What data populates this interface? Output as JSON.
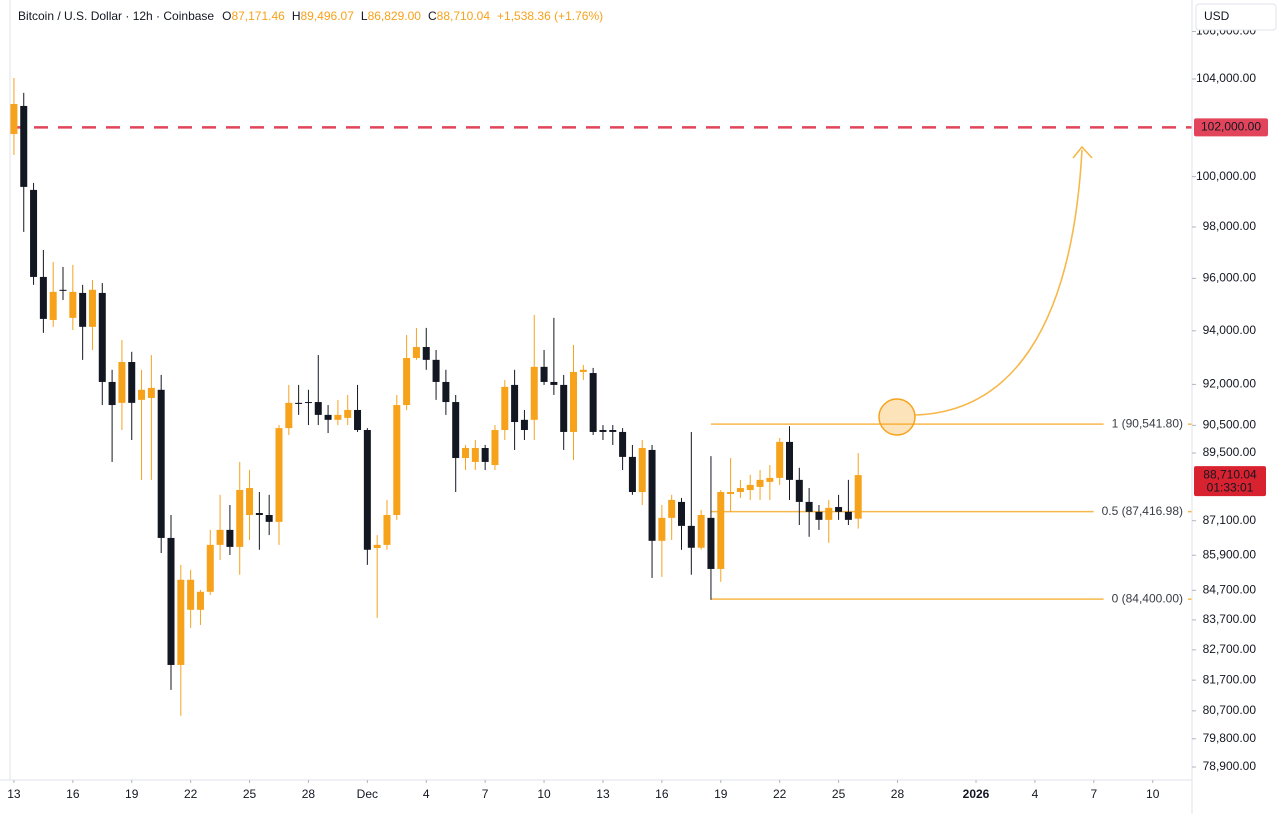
{
  "header": {
    "symbol": "Bitcoin / U.S. Dollar · 12h · Coinbase",
    "fields": [
      {
        "key": "O",
        "value": "87,171.46"
      },
      {
        "key": "H",
        "value": "89,496.07"
      },
      {
        "key": "L",
        "value": "86,829.00"
      },
      {
        "key": "C",
        "value": "88,710.04"
      }
    ],
    "change": "+1,538.36 (+1.76%)"
  },
  "chart_data": {
    "type": "candlestick",
    "currency": "USD",
    "log_scale": true,
    "up_color": "#f7a21b",
    "down_color": "#131722",
    "open": [
      101730,
      102880,
      99470,
      96055,
      94410,
      95560,
      94490,
      95440,
      94150,
      95440,
      92090,
      91320,
      92830,
      91430,
      91500,
      91800,
      86500,
      82200,
      84040,
      84040,
      84650,
      86260,
      86780,
      86190,
      87300,
      87370,
      87300,
      87060,
      90400,
      91320,
      91350,
      91350,
      90880,
      90700,
      90770,
      91060,
      90330,
      86150,
      86260,
      87300,
      91240,
      92980,
      93390,
      92910,
      92090,
      91350,
      89320,
      89180,
      89680,
      89070,
      90330,
      91980,
      90700,
      90700,
      92650,
      92090,
      91980,
      90260,
      92460,
      92420,
      90330,
      90330,
      90260,
      89360,
      88110,
      89610,
      86400,
      87200,
      87760,
      86920,
      86160,
      87200,
      85430,
      88040,
      88110,
      88180,
      88290,
      88470,
      88610,
      89900,
      88540,
      87760,
      87410,
      87130,
      87580,
      87410,
      87171.46
    ],
    "high": [
      104040,
      103420,
      99750,
      97100,
      96635,
      96440,
      96520,
      95750,
      95940,
      95820,
      92540,
      93656,
      93210,
      92540,
      93090,
      92350,
      87300,
      85570,
      85400,
      84710,
      86780,
      88010,
      87650,
      89180,
      88890,
      88110,
      88010,
      90510,
      91980,
      91980,
      91800,
      93090,
      91240,
      91430,
      91610,
      91980,
      90400,
      86600,
      87830,
      91610,
      93840,
      94110,
      94110,
      93280,
      92540,
      91610,
      89790,
      89970,
      89790,
      90510,
      92160,
      92540,
      91060,
      94600,
      93280,
      94490,
      92350,
      93470,
      92720,
      92610,
      90510,
      90510,
      90400,
      89790,
      89970,
      89790,
      87650,
      88010,
      87900,
      90260,
      87480,
      89390,
      88180,
      89320,
      88540,
      88720,
      88890,
      89070,
      90040,
      90470,
      88970,
      88250,
      87650,
      87830,
      88010,
      88540,
      89496.07
    ],
    "low": [
      100875,
      97810,
      95750,
      93920,
      94150,
      95170,
      94030,
      92910,
      93280,
      91240,
      89180,
      90333,
      89970,
      88540,
      88540,
      85980,
      81380,
      80540,
      83430,
      83530,
      84540,
      85740,
      85910,
      85230,
      86430,
      86090,
      86600,
      86260,
      90150,
      90880,
      90510,
      90510,
      90220,
      90510,
      90510,
      90260,
      85570,
      83770,
      86090,
      87130,
      91060,
      92910,
      92540,
      91430,
      90880,
      88110,
      88890,
      88890,
      88890,
      88890,
      89970,
      89610,
      89970,
      89970,
      91980,
      91610,
      89610,
      89250,
      92160,
      90150,
      89970,
      89790,
      88890,
      88010,
      87650,
      85120,
      85160,
      86430,
      86090,
      85230,
      86090,
      84380,
      84990,
      87410,
      87900,
      87830,
      87830,
      87830,
      88360,
      87830,
      86950,
      86540,
      86780,
      86330,
      87130,
      86950,
      86829
    ],
    "close": [
      102960,
      99590,
      96055,
      94450,
      95480,
      95520,
      95480,
      94150,
      95560,
      92090,
      91240,
      92830,
      91320,
      91800,
      91870,
      86500,
      82200,
      85060,
      85060,
      84650,
      86260,
      86780,
      86190,
      88180,
      88250,
      87300,
      87060,
      90400,
      91320,
      91280,
      91320,
      90880,
      90700,
      90880,
      91060,
      90330,
      86090,
      86260,
      87300,
      91240,
      92980,
      93390,
      92910,
      92090,
      91350,
      89320,
      89680,
      89680,
      89180,
      90330,
      91910,
      90620,
      90330,
      92650,
      92090,
      91980,
      90260,
      92460,
      92540,
      90260,
      90260,
      90260,
      89360,
      88110,
      89680,
      86400,
      87200,
      87830,
      86920,
      86160,
      87300,
      85430,
      88110,
      88110,
      88250,
      88360,
      88540,
      88610,
      89900,
      88540,
      87760,
      87410,
      87130,
      87550,
      87410,
      87130,
      88710.04
    ],
    "xlim": [
      -0.4,
      120
    ],
    "xticks": [
      {
        "value": 0,
        "label": "13"
      },
      {
        "value": 6,
        "label": "16"
      },
      {
        "value": 12,
        "label": "19"
      },
      {
        "value": 18,
        "label": "22"
      },
      {
        "value": 24,
        "label": "25"
      },
      {
        "value": 30,
        "label": "28"
      },
      {
        "value": 36,
        "label": "Dec"
      },
      {
        "value": 42,
        "label": "4"
      },
      {
        "value": 48,
        "label": "7"
      },
      {
        "value": 54,
        "label": "10"
      },
      {
        "value": 60,
        "label": "13"
      },
      {
        "value": 66,
        "label": "16"
      },
      {
        "value": 72,
        "label": "19"
      },
      {
        "value": 78,
        "label": "22"
      },
      {
        "value": 84,
        "label": "25"
      },
      {
        "value": 90,
        "label": "28"
      },
      {
        "value": 98,
        "label": "2026"
      },
      {
        "value": 104,
        "label": "4"
      },
      {
        "value": 110,
        "label": "7"
      },
      {
        "value": 116,
        "label": "10"
      }
    ],
    "ylim": [
      78490,
      107350
    ],
    "yticks": [
      {
        "value": 106000,
        "label": "106,000.00"
      },
      {
        "value": 104000,
        "label": "104,000.00"
      },
      {
        "value": 100000,
        "label": "100,000.00"
      },
      {
        "value": 98000,
        "label": "98,000.00"
      },
      {
        "value": 96000,
        "label": "96,000.00"
      },
      {
        "value": 94000,
        "label": "94,000.00"
      },
      {
        "value": 92000,
        "label": "92,000.00"
      },
      {
        "value": 90500,
        "label": "90,500.00"
      },
      {
        "value": 89500,
        "label": "89,500.00"
      },
      {
        "value": 87100,
        "label": "87,100.00"
      },
      {
        "value": 85900,
        "label": "85,900.00"
      },
      {
        "value": 84700,
        "label": "84,700.00"
      },
      {
        "value": 83700,
        "label": "83,700.00"
      },
      {
        "value": 82700,
        "label": "82,700.00"
      },
      {
        "value": 81700,
        "label": "81,700.00"
      },
      {
        "value": 80700,
        "label": "80,700.00"
      },
      {
        "value": 79800,
        "label": "79,800.00"
      },
      {
        "value": 78900,
        "label": "78,900.00"
      }
    ],
    "hline": {
      "value": 102000,
      "label": "102,000.00",
      "color": "#e2455b"
    },
    "fib_color": "#f7b84b",
    "fib_levels": [
      {
        "value": 90541.8,
        "label": "1 (90,541.80)"
      },
      {
        "value": 87416.98,
        "label": "0.5 (87,416.98)"
      },
      {
        "value": 84400,
        "label": "0 (84,400.00)"
      }
    ],
    "last_price": {
      "value": 88710.04,
      "label": "88,710.04",
      "countdown": "01:33:01",
      "color": "#d9222f"
    }
  }
}
